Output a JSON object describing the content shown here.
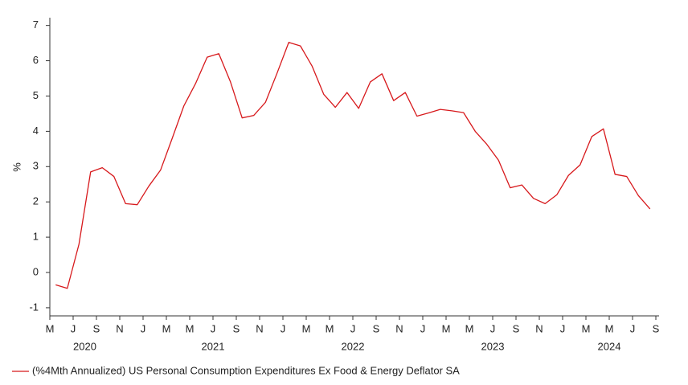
{
  "chart_data": {
    "type": "line",
    "ylabel": "%",
    "x": [
      "2020-05",
      "2020-06",
      "2020-07",
      "2020-08",
      "2020-09",
      "2020-10",
      "2020-11",
      "2020-12",
      "2021-01",
      "2021-02",
      "2021-03",
      "2021-04",
      "2021-05",
      "2021-06",
      "2021-07",
      "2021-08",
      "2021-09",
      "2021-10",
      "2021-11",
      "2021-12",
      "2022-01",
      "2022-02",
      "2022-03",
      "2022-04",
      "2022-05",
      "2022-06",
      "2022-07",
      "2022-08",
      "2022-09",
      "2022-10",
      "2022-11",
      "2022-12",
      "2023-01",
      "2023-02",
      "2023-03",
      "2023-04",
      "2023-05",
      "2023-06",
      "2023-07",
      "2023-08",
      "2023-09",
      "2023-10",
      "2023-11",
      "2023-12",
      "2024-01",
      "2024-02",
      "2024-03",
      "2024-04",
      "2024-05",
      "2024-06",
      "2024-07",
      "2024-08"
    ],
    "series": [
      {
        "name": "(%4Mth Annualized) US Personal Consumption Expenditures Ex Food & Energy Deflator SA",
        "color": "#d7191c",
        "values": [
          -0.35,
          -0.45,
          0.8,
          2.85,
          2.97,
          2.72,
          1.95,
          1.92,
          2.45,
          2.9,
          3.8,
          4.72,
          5.35,
          6.1,
          6.2,
          5.4,
          4.38,
          4.45,
          4.82,
          5.65,
          6.52,
          6.42,
          5.85,
          5.05,
          4.68,
          5.1,
          4.65,
          5.4,
          5.63,
          4.87,
          5.1,
          4.43,
          4.52,
          4.62,
          4.58,
          4.53,
          4.0,
          3.63,
          3.18,
          2.4,
          2.48,
          2.1,
          1.95,
          2.2,
          2.75,
          3.05,
          3.85,
          4.07,
          2.78,
          2.72,
          2.18,
          1.8
        ]
      }
    ],
    "xlim": [
      "2020-05",
      "2024-09"
    ],
    "xticks": [
      {
        "value": "2020-05",
        "label": "M"
      },
      {
        "value": "2020-07",
        "label": "J"
      },
      {
        "value": "2020-09",
        "label": "S"
      },
      {
        "value": "2020-11",
        "label": "N"
      },
      {
        "value": "2021-01",
        "label": "J"
      },
      {
        "value": "2021-03",
        "label": "M"
      },
      {
        "value": "2021-05",
        "label": "M"
      },
      {
        "value": "2021-07",
        "label": "J"
      },
      {
        "value": "2021-09",
        "label": "S"
      },
      {
        "value": "2021-11",
        "label": "N"
      },
      {
        "value": "2022-01",
        "label": "J"
      },
      {
        "value": "2022-03",
        "label": "M"
      },
      {
        "value": "2022-05",
        "label": "M"
      },
      {
        "value": "2022-07",
        "label": "J"
      },
      {
        "value": "2022-09",
        "label": "S"
      },
      {
        "value": "2022-11",
        "label": "N"
      },
      {
        "value": "2023-01",
        "label": "J"
      },
      {
        "value": "2023-03",
        "label": "M"
      },
      {
        "value": "2023-05",
        "label": "M"
      },
      {
        "value": "2023-07",
        "label": "J"
      },
      {
        "value": "2023-09",
        "label": "S"
      },
      {
        "value": "2023-11",
        "label": "N"
      },
      {
        "value": "2024-01",
        "label": "J"
      },
      {
        "value": "2024-03",
        "label": "M"
      },
      {
        "value": "2024-05",
        "label": "M"
      },
      {
        "value": "2024-07",
        "label": "J"
      },
      {
        "value": "2024-09",
        "label": "S"
      }
    ],
    "year_labels": [
      {
        "value": "2020-08",
        "label": "2020"
      },
      {
        "value": "2021-07",
        "label": "2021"
      },
      {
        "value": "2022-07",
        "label": "2022"
      },
      {
        "value": "2023-07",
        "label": "2023"
      },
      {
        "value": "2024-05",
        "label": "2024"
      }
    ],
    "ylim": [
      -1.23,
      7.22
    ],
    "yticks": [
      -1,
      0,
      1,
      2,
      3,
      4,
      5,
      6,
      7
    ],
    "legend": "bottom-left"
  }
}
